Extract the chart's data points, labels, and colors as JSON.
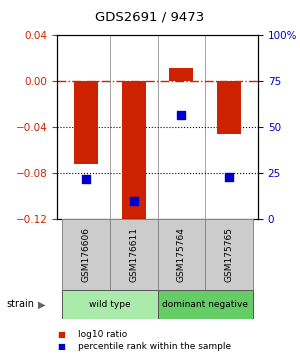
{
  "title": "GDS2691 / 9473",
  "samples": [
    "GSM176606",
    "GSM176611",
    "GSM175764",
    "GSM175765"
  ],
  "log10_ratio": [
    -0.072,
    -0.122,
    0.012,
    -0.046
  ],
  "percentile_rank": [
    22,
    10,
    57,
    23
  ],
  "ylim_left": [
    -0.12,
    0.04
  ],
  "ylim_right": [
    0,
    100
  ],
  "bar_color": "#cc2200",
  "dot_color": "#0000cc",
  "groups": [
    {
      "label": "wild type",
      "samples": [
        0,
        1
      ],
      "color": "#aaeaaa"
    },
    {
      "label": "dominant negative",
      "samples": [
        2,
        3
      ],
      "color": "#66cc66"
    }
  ],
  "group_label": "strain",
  "hline_zero_color": "#cc2200",
  "hline_dotted_values": [
    -0.04,
    -0.08
  ],
  "legend_items": [
    {
      "color": "#cc2200",
      "label": "log10 ratio"
    },
    {
      "color": "#0000cc",
      "label": "percentile rank within the sample"
    }
  ],
  "sample_box_color": "#cccccc",
  "bar_width": 0.5
}
